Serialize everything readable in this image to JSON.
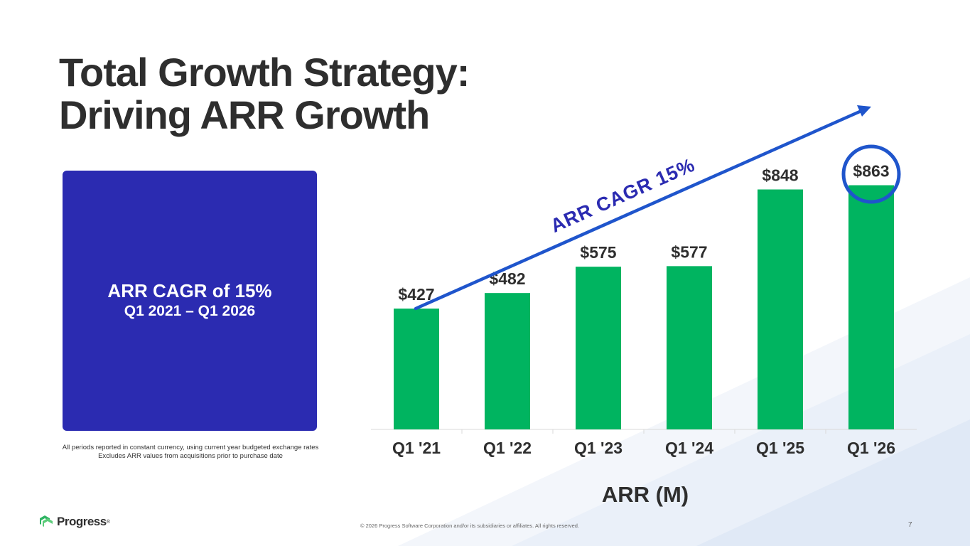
{
  "title": {
    "line1": "Total Growth Strategy:",
    "line2": "Driving ARR Growth"
  },
  "highlight_box": {
    "line1": "ARR CAGR of 15%",
    "line2": "Q1 2021 – Q1 2026",
    "color": "#2b2bb1"
  },
  "footnotes": [
    "All periods reported in constant currency, using current year budgeted exchange rates",
    "Excludes ARR values from acquisitions prior to purchase date"
  ],
  "logo": {
    "text": "Progress",
    "mark": "®"
  },
  "copyright": "© 2026 Progress Software Corporation and/or its subsidiaries or affiliates. All rights reserved.",
  "page_number": "7",
  "colors": {
    "bar": "#00b460",
    "accent": "#1f55cc",
    "text": "#2e2e2e"
  },
  "chart_data": {
    "type": "bar",
    "categories": [
      "Q1 '21",
      "Q1 '22",
      "Q1 '23",
      "Q1 '24",
      "Q1 '25",
      "Q1 '26"
    ],
    "values": [
      427,
      482,
      575,
      577,
      848,
      863
    ],
    "data_labels": [
      "$427",
      "$482",
      "$575",
      "$577",
      "$848",
      "$863"
    ],
    "xlabel": "ARR (M)",
    "ylabel": "",
    "ylim": [
      0,
      1000
    ],
    "grid": false,
    "trend_annotation": "ARR CAGR 15%",
    "highlighted_category": "Q1 '26"
  }
}
